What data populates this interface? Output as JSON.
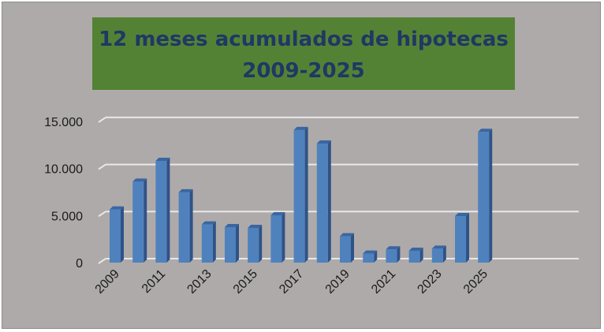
{
  "chart_data": {
    "type": "bar",
    "title_line1": "12 meses acumulados de hipotecas",
    "title_line2": "2009-2025",
    "categories": [
      "2009",
      "2010",
      "2011",
      "2012",
      "2013",
      "2014",
      "2015",
      "2016",
      "2017",
      "2018",
      "2019",
      "2020",
      "2021",
      "2022",
      "2023",
      "2024",
      "2025"
    ],
    "values": [
      5640,
      8600,
      10800,
      7460,
      4050,
      3770,
      3690,
      5030,
      14080,
      12650,
      2790,
      950,
      1400,
      1260,
      1480,
      4940,
      13880
    ],
    "x_tick_labels": [
      "2009",
      "2011",
      "2013",
      "2015",
      "2017",
      "2019",
      "2021",
      "2023",
      "2025"
    ],
    "y_tick_labels": [
      "0",
      "5.000",
      "10.000",
      "15.000"
    ],
    "y_ticks": [
      0,
      5000,
      10000,
      15000
    ],
    "ylim": [
      0,
      15000
    ],
    "grid": true,
    "style": "3d-column",
    "colors": {
      "bar": "#4f81bd",
      "bar_side": "#2f5287",
      "bar_top": "#3a66a0",
      "background": "#aeaaaa",
      "title_box": "#548235",
      "title_text": "#1f3864",
      "grid": "#e8e8e8"
    }
  }
}
